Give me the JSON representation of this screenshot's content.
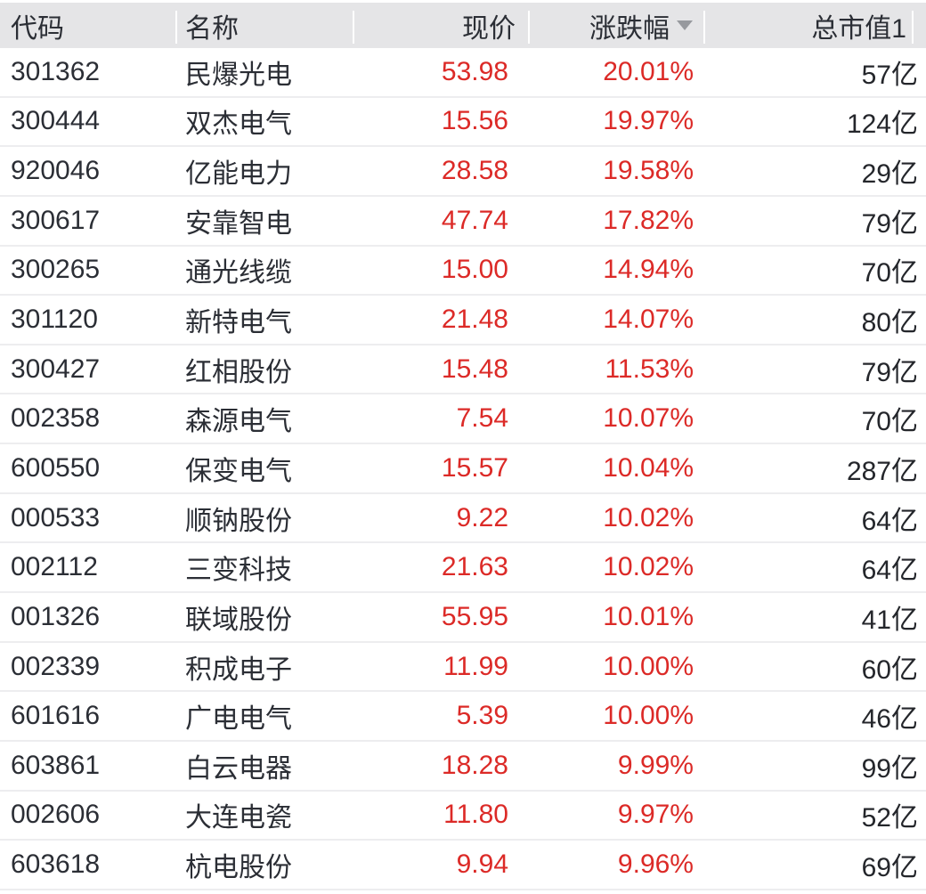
{
  "table": {
    "columns": [
      {
        "key": "code",
        "label": "代码",
        "align": "left"
      },
      {
        "key": "name",
        "label": "名称",
        "align": "left"
      },
      {
        "key": "price",
        "label": "现价",
        "align": "right"
      },
      {
        "key": "change",
        "label": "涨跌幅",
        "align": "right"
      },
      {
        "key": "mcap",
        "label": "总市值1",
        "align": "right"
      }
    ],
    "sort": {
      "column_key": "change",
      "column_label": "涨跌幅",
      "direction": "desc",
      "icon": "triangle-down"
    },
    "rows": [
      {
        "code": "301362",
        "name": "民爆光电",
        "price": "53.98",
        "change": "20.01%",
        "mcap": "57亿"
      },
      {
        "code": "300444",
        "name": "双杰电气",
        "price": "15.56",
        "change": "19.97%",
        "mcap": "124亿"
      },
      {
        "code": "920046",
        "name": "亿能电力",
        "price": "28.58",
        "change": "19.58%",
        "mcap": "29亿"
      },
      {
        "code": "300617",
        "name": "安靠智电",
        "price": "47.74",
        "change": "17.82%",
        "mcap": "79亿"
      },
      {
        "code": "300265",
        "name": "通光线缆",
        "price": "15.00",
        "change": "14.94%",
        "mcap": "70亿"
      },
      {
        "code": "301120",
        "name": "新特电气",
        "price": "21.48",
        "change": "14.07%",
        "mcap": "80亿"
      },
      {
        "code": "300427",
        "name": "红相股份",
        "price": "15.48",
        "change": "11.53%",
        "mcap": "79亿"
      },
      {
        "code": "002358",
        "name": "森源电气",
        "price": "7.54",
        "change": "10.07%",
        "mcap": "70亿"
      },
      {
        "code": "600550",
        "name": "保变电气",
        "price": "15.57",
        "change": "10.04%",
        "mcap": "287亿"
      },
      {
        "code": "000533",
        "name": "顺钠股份",
        "price": "9.22",
        "change": "10.02%",
        "mcap": "64亿"
      },
      {
        "code": "002112",
        "name": "三变科技",
        "price": "21.63",
        "change": "10.02%",
        "mcap": "64亿"
      },
      {
        "code": "001326",
        "name": "联域股份",
        "price": "55.95",
        "change": "10.01%",
        "mcap": "41亿"
      },
      {
        "code": "002339",
        "name": "积成电子",
        "price": "11.99",
        "change": "10.00%",
        "mcap": "60亿"
      },
      {
        "code": "601616",
        "name": "广电电气",
        "price": "5.39",
        "change": "10.00%",
        "mcap": "46亿"
      },
      {
        "code": "603861",
        "name": "白云电器",
        "price": "18.28",
        "change": "9.99%",
        "mcap": "99亿"
      },
      {
        "code": "002606",
        "name": "大连电瓷",
        "price": "11.80",
        "change": "9.97%",
        "mcap": "52亿"
      },
      {
        "code": "603618",
        "name": "杭电股份",
        "price": "9.94",
        "change": "9.96%",
        "mcap": "69亿"
      }
    ]
  },
  "colors": {
    "up_red": "#dc2a27",
    "header_bg": "#e5e5e7",
    "dark_text": "#2b2e35",
    "row_divider": "#ededef",
    "sort_icon_gray": "#97999e"
  }
}
